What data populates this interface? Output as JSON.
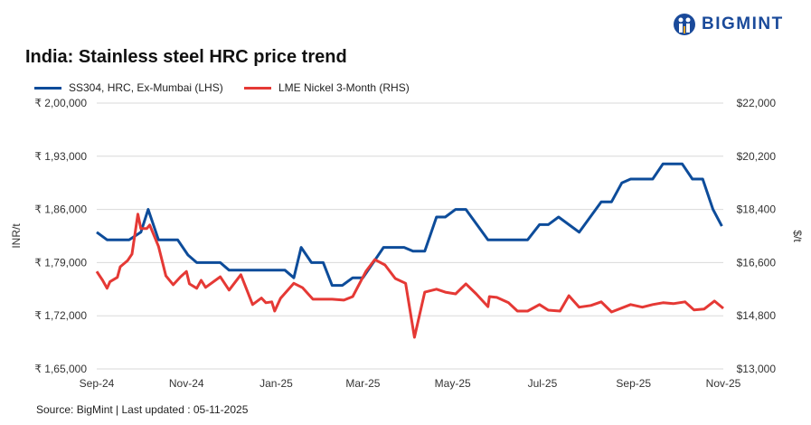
{
  "logo": {
    "text": "BIGMINT"
  },
  "title": "India: Stainless steel HRC price trend",
  "source": "Source: BigMint | Last updated : 05-11-2025",
  "colors": {
    "blue": "#0d4c9a",
    "red": "#e53935",
    "grid": "#d9d9d9"
  },
  "chart_data": {
    "type": "line",
    "title": "India: Stainless steel HRC price trend",
    "ylabel": "INR/t",
    "y2label": "$/t",
    "ylim": [
      165000,
      200000
    ],
    "y2lim": [
      13000,
      22000
    ],
    "xlim": [
      "2024-09-01",
      "2025-11-01"
    ],
    "grid": "horizontal",
    "legend": "top-left",
    "xticks": [
      {
        "date": "2024-09-01",
        "label": "Sep-24"
      },
      {
        "date": "2024-11-01",
        "label": "Nov-24"
      },
      {
        "date": "2025-01-01",
        "label": "Jan-25"
      },
      {
        "date": "2025-03-01",
        "label": "Mar-25"
      },
      {
        "date": "2025-05-01",
        "label": "May-25"
      },
      {
        "date": "2025-07-01",
        "label": "Jul-25"
      },
      {
        "date": "2025-09-01",
        "label": "Sep-25"
      },
      {
        "date": "2025-11-01",
        "label": "Nov-25"
      }
    ],
    "yticks": [
      {
        "v": 165000,
        "label": "₹ 1,65,000"
      },
      {
        "v": 172000,
        "label": "₹ 1,72,000"
      },
      {
        "v": 179000,
        "label": "₹ 1,79,000"
      },
      {
        "v": 186000,
        "label": "₹ 1,86,000"
      },
      {
        "v": 193000,
        "label": "₹ 1,93,000"
      },
      {
        "v": 200000,
        "label": "₹ 2,00,000"
      }
    ],
    "y2ticks": [
      {
        "v": 13000,
        "label": "$13,000"
      },
      {
        "v": 14800,
        "label": "$14,800"
      },
      {
        "v": 16600,
        "label": "$16,600"
      },
      {
        "v": 18400,
        "label": "$18,400"
      },
      {
        "v": 20200,
        "label": "$20,200"
      },
      {
        "v": 22000,
        "label": "$22,000"
      }
    ],
    "series": [
      {
        "name": "SS304, HRC, Ex-Mumbai (LHS)",
        "axis": "left",
        "color": "#0d4c9a",
        "points": [
          [
            "2024-09-01",
            183000
          ],
          [
            "2024-09-08",
            182000
          ],
          [
            "2024-09-23",
            182000
          ],
          [
            "2024-10-01",
            183000
          ],
          [
            "2024-10-06",
            186000
          ],
          [
            "2024-10-13",
            182000
          ],
          [
            "2024-10-26",
            182000
          ],
          [
            "2024-11-02",
            180000
          ],
          [
            "2024-11-08",
            179000
          ],
          [
            "2024-11-24",
            179000
          ],
          [
            "2024-11-30",
            178000
          ],
          [
            "2025-01-07",
            178000
          ],
          [
            "2025-01-13",
            177000
          ],
          [
            "2025-01-18",
            181000
          ],
          [
            "2025-01-25",
            179000
          ],
          [
            "2025-02-02",
            179000
          ],
          [
            "2025-02-08",
            176000
          ],
          [
            "2025-02-15",
            176000
          ],
          [
            "2025-02-22",
            177000
          ],
          [
            "2025-03-01",
            177000
          ],
          [
            "2025-03-15",
            181000
          ],
          [
            "2025-03-29",
            181000
          ],
          [
            "2025-04-04",
            180500
          ],
          [
            "2025-04-12",
            180500
          ],
          [
            "2025-04-20",
            185000
          ],
          [
            "2025-04-26",
            185000
          ],
          [
            "2025-05-03",
            186000
          ],
          [
            "2025-05-10",
            186000
          ],
          [
            "2025-05-25",
            182000
          ],
          [
            "2025-06-21",
            182000
          ],
          [
            "2025-06-29",
            184000
          ],
          [
            "2025-07-05",
            184000
          ],
          [
            "2025-07-12",
            185000
          ],
          [
            "2025-07-26",
            183000
          ],
          [
            "2025-08-10",
            187000
          ],
          [
            "2025-08-17",
            187000
          ],
          [
            "2025-08-24",
            189500
          ],
          [
            "2025-08-30",
            190000
          ],
          [
            "2025-09-14",
            190000
          ],
          [
            "2025-09-21",
            192000
          ],
          [
            "2025-10-04",
            192000
          ],
          [
            "2025-10-11",
            190000
          ],
          [
            "2025-10-18",
            190000
          ],
          [
            "2025-10-25",
            186000
          ],
          [
            "2025-10-31",
            183800
          ]
        ]
      },
      {
        "name": "LME Nickel 3-Month (RHS)",
        "axis": "right",
        "color": "#e53935",
        "points": [
          [
            "2024-09-01",
            16300
          ],
          [
            "2024-09-05",
            16000
          ],
          [
            "2024-09-08",
            15730
          ],
          [
            "2024-09-10",
            15950
          ],
          [
            "2024-09-15",
            16100
          ],
          [
            "2024-09-17",
            16460
          ],
          [
            "2024-09-22",
            16670
          ],
          [
            "2024-09-25",
            16890
          ],
          [
            "2024-09-29",
            18240
          ],
          [
            "2024-10-01",
            17750
          ],
          [
            "2024-10-05",
            17750
          ],
          [
            "2024-10-07",
            17870
          ],
          [
            "2024-10-13",
            17150
          ],
          [
            "2024-10-18",
            16150
          ],
          [
            "2024-10-23",
            15850
          ],
          [
            "2024-10-28",
            16120
          ],
          [
            "2024-11-01",
            16300
          ],
          [
            "2024-11-03",
            15880
          ],
          [
            "2024-11-08",
            15730
          ],
          [
            "2024-11-11",
            16000
          ],
          [
            "2024-11-14",
            15760
          ],
          [
            "2024-11-24",
            16120
          ],
          [
            "2024-11-30",
            15670
          ],
          [
            "2024-12-08",
            16190
          ],
          [
            "2024-12-16",
            15180
          ],
          [
            "2024-12-22",
            15400
          ],
          [
            "2024-12-25",
            15240
          ],
          [
            "2024-12-29",
            15270
          ],
          [
            "2024-12-31",
            14960
          ],
          [
            "2025-01-04",
            15390
          ],
          [
            "2025-01-13",
            15900
          ],
          [
            "2025-01-19",
            15750
          ],
          [
            "2025-01-26",
            15360
          ],
          [
            "2025-02-08",
            15360
          ],
          [
            "2025-02-16",
            15330
          ],
          [
            "2025-02-22",
            15450
          ],
          [
            "2025-03-03",
            16300
          ],
          [
            "2025-03-09",
            16700
          ],
          [
            "2025-03-16",
            16520
          ],
          [
            "2025-03-23",
            16060
          ],
          [
            "2025-03-30",
            15900
          ],
          [
            "2025-04-05",
            14070
          ],
          [
            "2025-04-12",
            15600
          ],
          [
            "2025-04-20",
            15700
          ],
          [
            "2025-04-26",
            15600
          ],
          [
            "2025-05-03",
            15540
          ],
          [
            "2025-05-10",
            15880
          ],
          [
            "2025-05-17",
            15540
          ],
          [
            "2025-05-25",
            15110
          ],
          [
            "2025-05-26",
            15450
          ],
          [
            "2025-05-31",
            15420
          ],
          [
            "2025-06-08",
            15240
          ],
          [
            "2025-06-14",
            14960
          ],
          [
            "2025-06-21",
            14960
          ],
          [
            "2025-06-29",
            15180
          ],
          [
            "2025-07-05",
            14990
          ],
          [
            "2025-07-13",
            14960
          ],
          [
            "2025-07-19",
            15480
          ],
          [
            "2025-07-26",
            15090
          ],
          [
            "2025-08-03",
            15150
          ],
          [
            "2025-08-10",
            15270
          ],
          [
            "2025-08-17",
            14930
          ],
          [
            "2025-08-30",
            15180
          ],
          [
            "2025-09-07",
            15090
          ],
          [
            "2025-09-14",
            15180
          ],
          [
            "2025-09-21",
            15240
          ],
          [
            "2025-09-28",
            15210
          ],
          [
            "2025-10-06",
            15270
          ],
          [
            "2025-10-12",
            15000
          ],
          [
            "2025-10-19",
            15030
          ],
          [
            "2025-10-26",
            15300
          ],
          [
            "2025-11-01",
            15050
          ]
        ]
      }
    ]
  }
}
